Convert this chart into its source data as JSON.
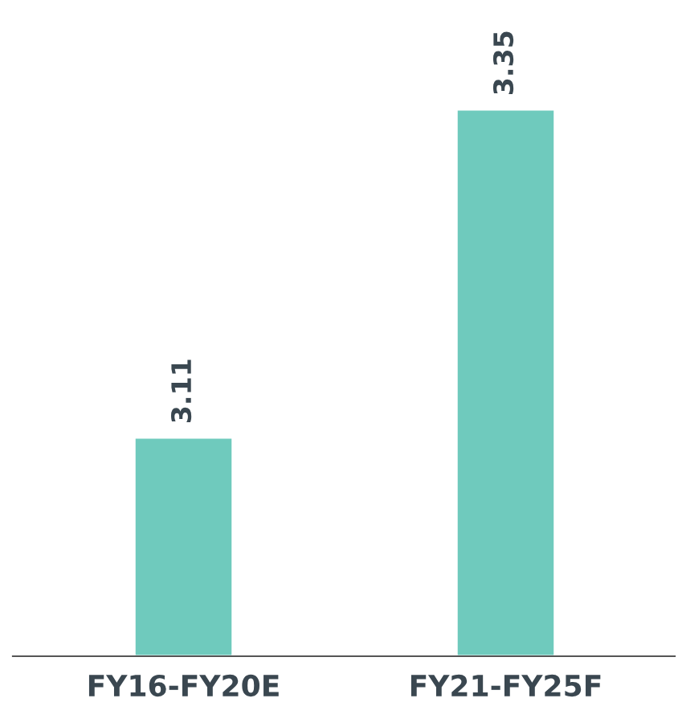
{
  "chart_data": {
    "type": "bar",
    "categories": [
      "FY16-FY20E",
      "FY21-FY25F"
    ],
    "values": [
      3.11,
      3.35
    ],
    "color": "#6fcabd",
    "ylim": [
      2.95,
      3.35
    ],
    "data_labels": true,
    "tick_labels": "x",
    "grid": false,
    "legend": false
  }
}
